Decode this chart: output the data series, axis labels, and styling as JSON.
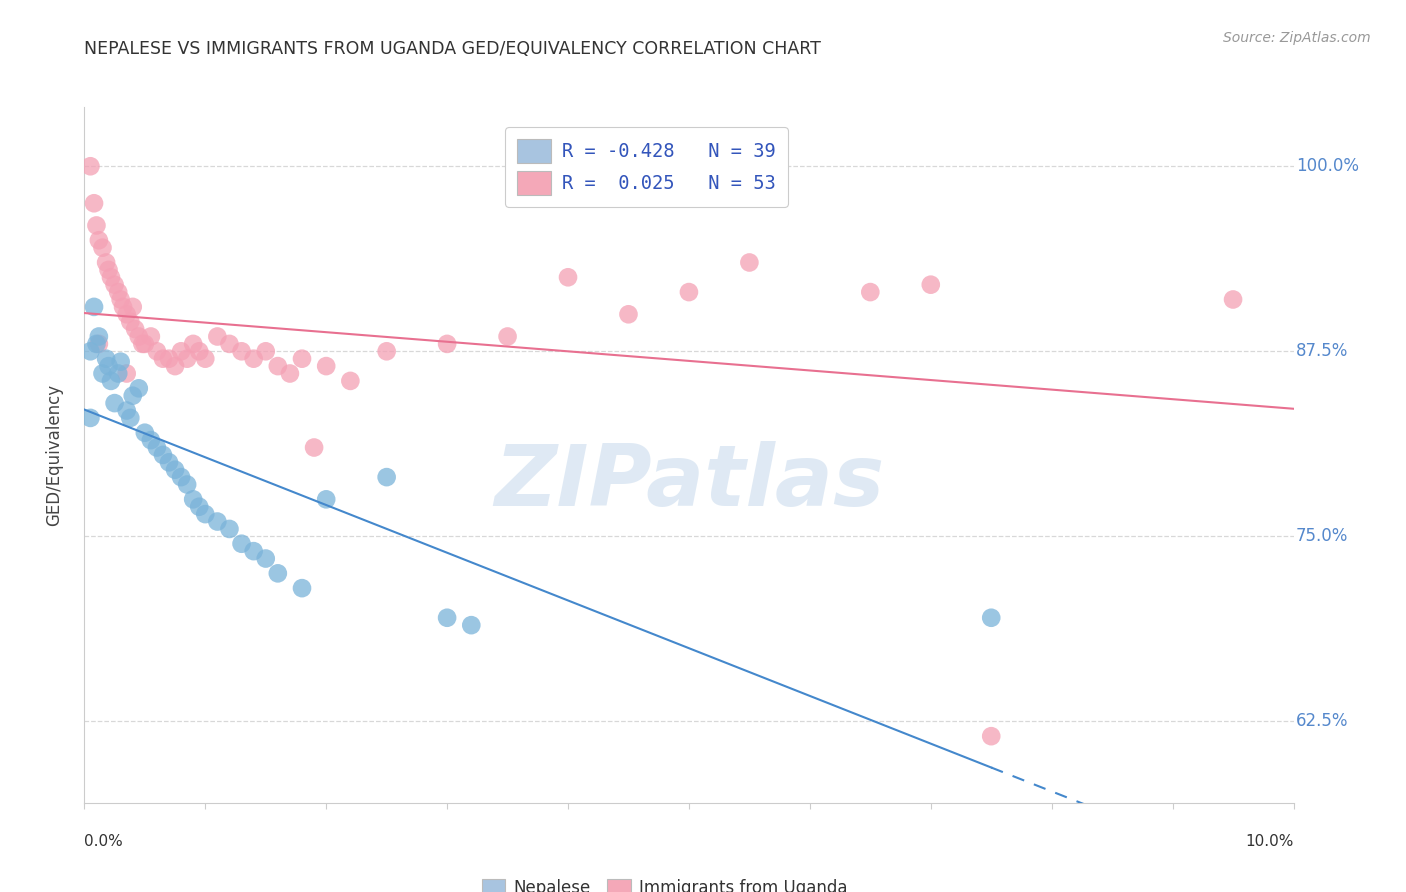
{
  "title": "NEPALESE VS IMMIGRANTS FROM UGANDA GED/EQUIVALENCY CORRELATION CHART",
  "source": "Source: ZipAtlas.com",
  "ylabel": "GED/Equivalency",
  "yticks": [
    62.5,
    75.0,
    87.5,
    100.0
  ],
  "ytick_labels": [
    "62.5%",
    "75.0%",
    "87.5%",
    "100.0%"
  ],
  "xmin": 0.0,
  "xmax": 10.0,
  "ymin": 57.0,
  "ymax": 104.0,
  "nepalese_label": "Nepalese",
  "uganda_label": "Immigrants from Uganda",
  "nepalese_color": "#7ab3d9",
  "uganda_color": "#f4a0b4",
  "legend_blue_color": "#a8c4e0",
  "legend_pink_color": "#f4a8b8",
  "line_blue_color": "#4488cc",
  "line_pink_color": "#e87090",
  "watermark": "ZIPatlas",
  "background_color": "#ffffff",
  "grid_color": "#d8d8d8",
  "ytick_color": "#5588cc",
  "title_color": "#333333",
  "source_color": "#999999",
  "nepalese_points": [
    [
      0.05,
      87.5
    ],
    [
      0.08,
      90.5
    ],
    [
      0.1,
      88.0
    ],
    [
      0.12,
      88.5
    ],
    [
      0.15,
      86.0
    ],
    [
      0.18,
      87.0
    ],
    [
      0.2,
      86.5
    ],
    [
      0.22,
      85.5
    ],
    [
      0.25,
      84.0
    ],
    [
      0.28,
      86.0
    ],
    [
      0.3,
      86.8
    ],
    [
      0.35,
      83.5
    ],
    [
      0.38,
      83.0
    ],
    [
      0.4,
      84.5
    ],
    [
      0.45,
      85.0
    ],
    [
      0.5,
      82.0
    ],
    [
      0.55,
      81.5
    ],
    [
      0.6,
      81.0
    ],
    [
      0.65,
      80.5
    ],
    [
      0.7,
      80.0
    ],
    [
      0.75,
      79.5
    ],
    [
      0.8,
      79.0
    ],
    [
      0.85,
      78.5
    ],
    [
      0.9,
      77.5
    ],
    [
      0.95,
      77.0
    ],
    [
      1.0,
      76.5
    ],
    [
      1.1,
      76.0
    ],
    [
      1.2,
      75.5
    ],
    [
      1.3,
      74.5
    ],
    [
      1.4,
      74.0
    ],
    [
      1.5,
      73.5
    ],
    [
      1.6,
      72.5
    ],
    [
      1.8,
      71.5
    ],
    [
      2.0,
      77.5
    ],
    [
      2.5,
      79.0
    ],
    [
      3.0,
      69.5
    ],
    [
      3.2,
      69.0
    ],
    [
      7.5,
      69.5
    ],
    [
      0.05,
      83.0
    ]
  ],
  "uganda_points": [
    [
      0.05,
      100.0
    ],
    [
      0.08,
      97.5
    ],
    [
      0.1,
      96.0
    ],
    [
      0.12,
      95.0
    ],
    [
      0.15,
      94.5
    ],
    [
      0.18,
      93.5
    ],
    [
      0.2,
      93.0
    ],
    [
      0.22,
      92.5
    ],
    [
      0.25,
      92.0
    ],
    [
      0.28,
      91.5
    ],
    [
      0.3,
      91.0
    ],
    [
      0.32,
      90.5
    ],
    [
      0.35,
      90.0
    ],
    [
      0.38,
      89.5
    ],
    [
      0.4,
      90.5
    ],
    [
      0.42,
      89.0
    ],
    [
      0.45,
      88.5
    ],
    [
      0.48,
      88.0
    ],
    [
      0.5,
      88.0
    ],
    [
      0.55,
      88.5
    ],
    [
      0.6,
      87.5
    ],
    [
      0.65,
      87.0
    ],
    [
      0.7,
      87.0
    ],
    [
      0.75,
      86.5
    ],
    [
      0.8,
      87.5
    ],
    [
      0.85,
      87.0
    ],
    [
      0.9,
      88.0
    ],
    [
      0.95,
      87.5
    ],
    [
      1.0,
      87.0
    ],
    [
      1.1,
      88.5
    ],
    [
      1.2,
      88.0
    ],
    [
      1.3,
      87.5
    ],
    [
      1.4,
      87.0
    ],
    [
      1.5,
      87.5
    ],
    [
      1.6,
      86.5
    ],
    [
      1.7,
      86.0
    ],
    [
      1.8,
      87.0
    ],
    [
      1.9,
      81.0
    ],
    [
      2.0,
      86.5
    ],
    [
      2.2,
      85.5
    ],
    [
      2.5,
      87.5
    ],
    [
      3.0,
      88.0
    ],
    [
      3.5,
      88.5
    ],
    [
      4.0,
      92.5
    ],
    [
      4.5,
      90.0
    ],
    [
      5.0,
      91.5
    ],
    [
      5.5,
      93.5
    ],
    [
      6.5,
      91.5
    ],
    [
      7.0,
      92.0
    ],
    [
      7.5,
      61.5
    ],
    [
      9.5,
      91.0
    ],
    [
      0.35,
      86.0
    ],
    [
      0.12,
      88.0
    ]
  ]
}
